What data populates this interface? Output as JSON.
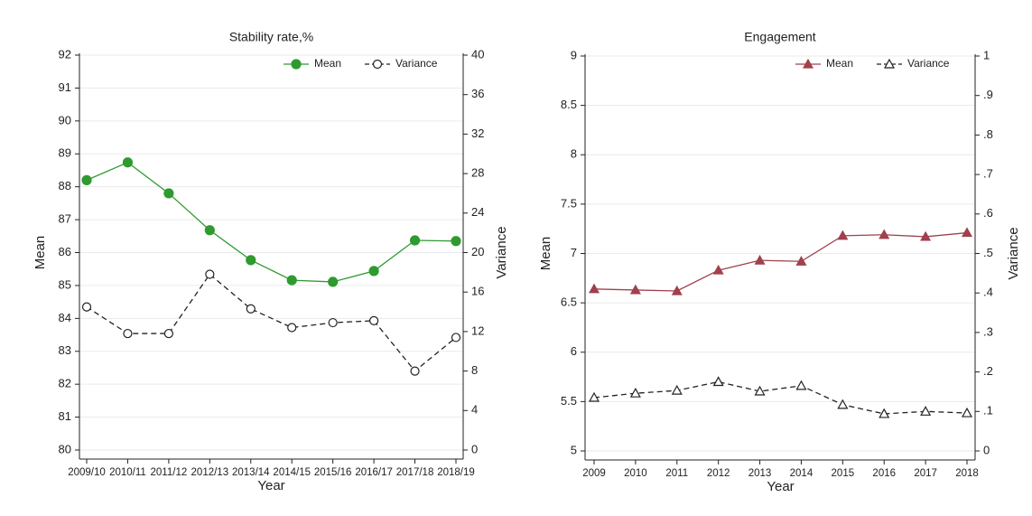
{
  "chart_data": [
    {
      "type": "line",
      "title": "Stability rate,%",
      "x_label": "Year",
      "y_label": "Mean",
      "y2_label": "Variance",
      "categories": [
        "2009/10",
        "2010/11",
        "2011/12",
        "2012/13",
        "2013/14",
        "2014/15",
        "2015/16",
        "2016/17",
        "2017/18",
        "2018/19"
      ],
      "series": [
        {
          "name": "Mean",
          "color": "#2f9a2f",
          "marker": "circle",
          "filled": true,
          "dashed": false,
          "values": [
            88.2,
            88.74,
            87.8,
            86.68,
            85.77,
            85.16,
            85.11,
            85.44,
            86.37,
            86.35
          ]
        },
        {
          "name": "Variance",
          "color": "#222222",
          "marker": "circle",
          "filled": false,
          "dashed": true,
          "axis": "y2",
          "values": [
            14.5,
            11.8,
            11.8,
            17.8,
            14.3,
            12.4,
            12.9,
            13.1,
            8.0,
            11.4
          ]
        }
      ],
      "ylim": [
        80,
        92
      ],
      "yticks": [
        80,
        81,
        82,
        83,
        84,
        85,
        86,
        87,
        88,
        89,
        90,
        91,
        92
      ],
      "y2lim": [
        0,
        40
      ],
      "y2ticks": [
        0,
        4,
        8,
        12,
        16,
        20,
        24,
        28,
        32,
        36,
        40
      ],
      "grid": true,
      "legend": "upper right"
    },
    {
      "type": "line",
      "title": "Engagement",
      "x_label": "Year",
      "y_label": "Mean",
      "y2_label": "Variance",
      "categories": [
        "2009",
        "2010",
        "2011",
        "2012",
        "2013",
        "2014",
        "2015",
        "2016",
        "2017",
        "2018"
      ],
      "series": [
        {
          "name": "Mean",
          "color": "#a0414c",
          "marker": "triangle",
          "filled": true,
          "dashed": false,
          "values": [
            6.64,
            6.63,
            6.62,
            6.83,
            6.93,
            6.92,
            7.18,
            7.19,
            7.17,
            7.21
          ]
        },
        {
          "name": "Variance",
          "color": "#222222",
          "marker": "triangle",
          "filled": false,
          "dashed": true,
          "axis": "y2",
          "values": [
            0.135,
            0.146,
            0.153,
            0.175,
            0.151,
            0.165,
            0.117,
            0.094,
            0.1,
            0.096
          ]
        }
      ],
      "ylim": [
        5,
        9
      ],
      "yticks": [
        5,
        5.5,
        6,
        6.5,
        7,
        7.5,
        8,
        8.5,
        9
      ],
      "y2lim": [
        0,
        1
      ],
      "y2ticks": [
        0,
        {
          "value": 0.1,
          "label": ".1"
        },
        {
          "value": 0.2,
          "label": ".2"
        },
        {
          "value": 0.3,
          "label": ".3"
        },
        {
          "value": 0.4,
          "label": ".4"
        },
        {
          "value": 0.5,
          "label": ".5"
        },
        {
          "value": 0.6,
          "label": ".6"
        },
        {
          "value": 0.7,
          "label": ".7"
        },
        {
          "value": 0.8,
          "label": ".8"
        },
        {
          "value": 0.9,
          "label": ".9"
        },
        1
      ],
      "grid": true,
      "legend": "upper right"
    }
  ]
}
